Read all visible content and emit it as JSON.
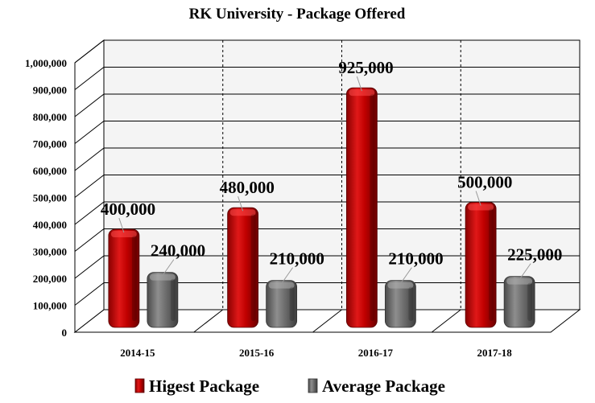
{
  "chart_data": {
    "type": "bar",
    "title": "RK University - Package Offered",
    "categories": [
      "2014-15",
      "2015-16",
      "2016-17",
      "2017-18"
    ],
    "series": [
      {
        "name": "Higest Package",
        "values": [
          400000,
          480000,
          925000,
          500000
        ],
        "labels": [
          "400,000",
          "480,000",
          "925,000",
          "500,000"
        ],
        "color": "#c00000"
      },
      {
        "name": "Average Package",
        "values": [
          240000,
          210000,
          210000,
          225000
        ],
        "labels": [
          "240,000",
          "210,000",
          "210,000",
          "225,000"
        ],
        "color": "#6e6e6e"
      }
    ],
    "ylim": [
      0,
      1000000
    ],
    "yticks": [
      "0",
      "100,000",
      "200,000",
      "300,000",
      "400,000",
      "500,000",
      "600,000",
      "700,000",
      "800,000",
      "900,000",
      "1,000,000"
    ],
    "legend_position": "bottom",
    "grid": true
  }
}
